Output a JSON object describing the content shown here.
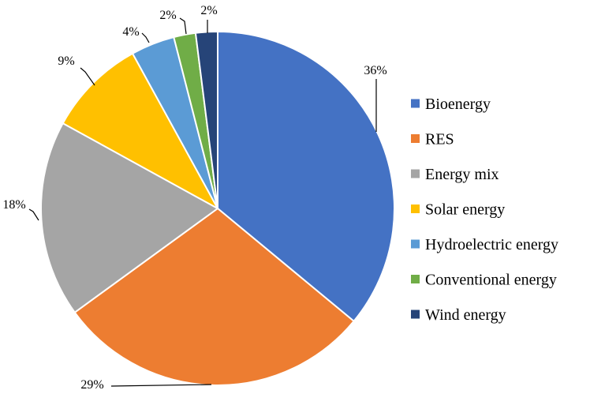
{
  "chart_data": {
    "type": "pie",
    "title": "",
    "categories": [
      "Bioenergy",
      "RES",
      "Energy mix",
      "Solar energy",
      "Hydroelectric energy",
      "Conventional energy",
      "Wind energy"
    ],
    "values": [
      36,
      29,
      18,
      9,
      4,
      2,
      2
    ],
    "labels": [
      "36%",
      "29%",
      "18%",
      "9%",
      "4%",
      "2%",
      "2%"
    ],
    "colors": [
      "#4472C4",
      "#ED7D31",
      "#A5A5A5",
      "#FFC000",
      "#5B9BD5",
      "#70AD47",
      "#264478"
    ],
    "legend_position": "right"
  }
}
